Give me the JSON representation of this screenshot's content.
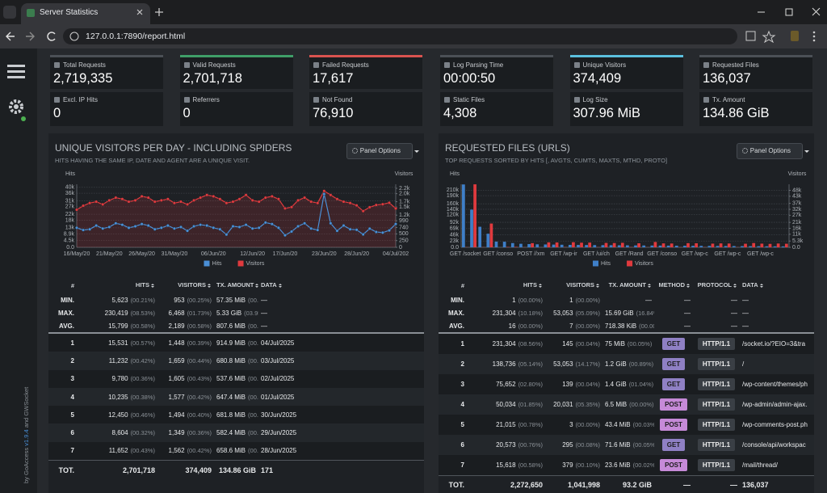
{
  "browser": {
    "tab_title": "Server Statistics",
    "url": "127.0.0.1:7890/report.html"
  },
  "sidebar": {
    "credit": [
      "by GoAccess",
      "v1.9.4",
      "and GWSocket"
    ]
  },
  "overview": {
    "groups": [
      [
        {
          "label": "Total Requests",
          "value": "2,719,335",
          "accent": "#4b5056"
        },
        {
          "label": "Valid Requests",
          "value": "2,701,718",
          "accent": "#3f9e68"
        },
        {
          "label": "Failed Requests",
          "value": "17,617",
          "accent": "#d9534f"
        },
        {
          "label": "Excl. IP Hits",
          "value": "0"
        },
        {
          "label": "Referrers",
          "value": "0"
        },
        {
          "label": "Not Found",
          "value": "76,910"
        }
      ],
      [
        {
          "label": "Log Parsing Time",
          "value": "00:00:50",
          "accent": "#4b5056"
        },
        {
          "label": "Unique Visitors",
          "value": "374,409",
          "accent": "#5bc0de"
        },
        {
          "label": "Requested Files",
          "value": "136,037",
          "accent": "#4b5056"
        },
        {
          "label": "Static Files",
          "value": "4,308"
        },
        {
          "label": "Log Size",
          "value": "307.96 MiB"
        },
        {
          "label": "Tx. Amount",
          "value": "134.86 GiB"
        }
      ]
    ]
  },
  "panels": [
    {
      "title": "UNIQUE VISITORS PER DAY - INCLUDING SPIDERS",
      "subtitle": "HITS HAVING THE SAME IP, DATE AND AGENT ARE A UNIQUE VISIT.",
      "options": "Panel Options",
      "chart_data": {
        "type": "line",
        "y_label": "Hits",
        "y2_label": "Visitors",
        "categories": [
          "16/May/20",
          null,
          null,
          null,
          null,
          "21/May/20",
          null,
          null,
          null,
          null,
          "26/May/20",
          null,
          null,
          null,
          null,
          "31/May/20",
          null,
          null,
          null,
          null,
          null,
          "06/Jun/20",
          null,
          null,
          null,
          null,
          null,
          "12/Jun/20",
          null,
          null,
          null,
          null,
          "17/Jun/20",
          null,
          null,
          null,
          null,
          null,
          "23/Jun/20",
          null,
          null,
          null,
          null,
          "28/Jun/20",
          null,
          null,
          null,
          null,
          null,
          "04/Jul/202"
        ],
        "series": [
          {
            "name": "Hits",
            "color": "#4a8fd6",
            "values": [
              13000,
              11500,
              12000,
              14500,
              12500,
              13500,
              16000,
              15000,
              13000,
              14000,
              15500,
              14500,
              12000,
              13000,
              14500,
              12500,
              13500,
              11000,
              14000,
              15000,
              14500,
              13000,
              12000,
              8500,
              14000,
              13500,
              15000,
              12500,
              13000,
              16500,
              15500,
              13000,
              8000,
              10500,
              14000,
              16000,
              12500,
              11500,
              35500,
              16000,
              11000,
              14500,
              12000,
              11652,
              8604,
              12450,
              10235,
              9780,
              11232,
              15531
            ]
          },
          {
            "name": "Visitors",
            "color": "#e03a3e",
            "axis": "y2",
            "values": [
              1400,
              1550,
              1650,
              1700,
              1600,
              1750,
              1850,
              1800,
              1700,
              1750,
              1900,
              1850,
              1700,
              1750,
              1800,
              1650,
              1700,
              1600,
              1750,
              1850,
              1950,
              1900,
              1800,
              1650,
              1700,
              1800,
              1950,
              1750,
              1700,
              1850,
              1900,
              1800,
              1450,
              1500,
              1750,
              1850,
              1700,
              1650,
              2100,
              1950,
              1800,
              1700,
              1650,
              1562,
              1349,
              1494,
              1577,
              1605,
              1659,
              1448
            ]
          }
        ],
        "ylim": [
          0,
          42000
        ],
        "yticks": [
          {
            "value": 0,
            "label": "0.0"
          },
          {
            "value": 4500,
            "label": "4.5k"
          },
          {
            "value": 8900,
            "label": "8.9k"
          },
          {
            "value": 13000,
            "label": "13k"
          },
          {
            "value": 18000,
            "label": "18k"
          },
          {
            "value": 22000,
            "label": "22k"
          },
          {
            "value": 27000,
            "label": "27k"
          },
          {
            "value": 31000,
            "label": "31k"
          },
          {
            "value": 36000,
            "label": "36k"
          },
          {
            "value": 40000,
            "label": "40k"
          }
        ],
        "y2lim": [
          0,
          2350
        ],
        "y2ticks": [
          0,
          250,
          500,
          740,
          990,
          {
            "value": 1200,
            "label": "1.2k"
          },
          {
            "value": 1500,
            "label": "1.5k"
          },
          {
            "value": 1700,
            "label": "1.7k"
          },
          {
            "value": 2000,
            "label": "2.0k"
          },
          {
            "value": 2200,
            "label": "2.2k"
          }
        ],
        "grid": true
      },
      "table": {
        "columns": [
          "#",
          "HITS",
          "VISITORS",
          "TX. AMOUNT",
          "DATA"
        ],
        "summary": [
          [
            "MIN.",
            [
              "5,623",
              "(00.21%)"
            ],
            [
              "953",
              "(00.25%)"
            ],
            [
              "57.35 MiB",
              "(00.04%)"
            ],
            "—"
          ],
          [
            "MAX.",
            [
              "230,419",
              "(08.53%)"
            ],
            [
              "6,468",
              "(01.73%)"
            ],
            [
              "5.33 GiB",
              "(03.95%)"
            ],
            "—"
          ],
          [
            "AVG.",
            [
              "15,799",
              "(00.58%)"
            ],
            [
              "2,189",
              "(00.58%)"
            ],
            [
              "807.6 MiB",
              "(00.58%)"
            ],
            "—"
          ]
        ],
        "rows": [
          [
            "1",
            [
              "15,531",
              "(00.57%)"
            ],
            [
              "1,448",
              "(00.39%)"
            ],
            [
              "914.9 MiB",
              "(00.66%)"
            ],
            "04/Jul/2025"
          ],
          [
            "2",
            [
              "11,232",
              "(00.42%)"
            ],
            [
              "1,659",
              "(00.44%)"
            ],
            [
              "680.8 MiB",
              "(00.49%)"
            ],
            "03/Jul/2025"
          ],
          [
            "3",
            [
              "9,780",
              "(00.36%)"
            ],
            [
              "1,605",
              "(00.43%)"
            ],
            [
              "537.6 MiB",
              "(00.39%)"
            ],
            "02/Jul/2025"
          ],
          [
            "4",
            [
              "10,235",
              "(00.38%)"
            ],
            [
              "1,577",
              "(00.42%)"
            ],
            [
              "647.4 MiB",
              "(00.47%)"
            ],
            "01/Jul/2025"
          ],
          [
            "5",
            [
              "12,450",
              "(00.46%)"
            ],
            [
              "1,494",
              "(00.40%)"
            ],
            [
              "681.8 MiB",
              "(00.49%)"
            ],
            "30/Jun/2025"
          ],
          [
            "6",
            [
              "8,604",
              "(00.32%)"
            ],
            [
              "1,349",
              "(00.36%)"
            ],
            [
              "582.4 MiB",
              "(00.42%)"
            ],
            "29/Jun/2025"
          ],
          [
            "7",
            [
              "11,652",
              "(00.43%)"
            ],
            [
              "1,562",
              "(00.42%)"
            ],
            [
              "658.6 MiB",
              "(00.48%)"
            ],
            "28/Jun/2025"
          ]
        ],
        "total": [
          "TOT.",
          "2,701,718",
          "374,409",
          "134.86 GiB",
          "171"
        ]
      }
    },
    {
      "title": "REQUESTED FILES (URLS)",
      "subtitle": "TOP REQUESTS SORTED BY HITS [, AVGTS, CUMTS, MAXTS, MTHD, PROTO]",
      "options": "Panel Options",
      "chart_data": {
        "type": "bar",
        "y_label": "Hits",
        "y2_label": "Visitors",
        "categories": [
          "GET /socket",
          null,
          null,
          null,
          "GET /conso",
          null,
          null,
          null,
          "POST //xm",
          null,
          null,
          null,
          "GET /wp-ir",
          null,
          null,
          null,
          "GET /ui/ch",
          null,
          null,
          null,
          "GET /Rand",
          null,
          null,
          null,
          "GET /conso",
          null,
          null,
          null,
          "GET /wp-c",
          null,
          null,
          null,
          "GET /wp-c",
          null,
          null,
          null,
          "GET /wp-c",
          null,
          null,
          null
        ],
        "series": [
          {
            "name": "Hits",
            "color": "#3f7fc8",
            "values": [
              231304,
              138736,
              75652,
              50034,
              21015,
              20573,
              15618,
              13000,
              12000,
              11000,
              10500,
              10000,
              9500,
              9000,
              8800,
              8500,
              8200,
              8000,
              7800,
              7500,
              7300,
              7000,
              6800,
              6600,
              6400,
              6200,
              6000,
              5800,
              5600,
              5400,
              5200,
              5000,
              4800,
              4600,
              4400,
              4200,
              4000,
              3800,
              3600,
              3400
            ]
          },
          {
            "name": "Visitors",
            "color": "#e03a3e",
            "axis": "y2",
            "values": [
              145,
              53053,
              139,
              20031,
              3,
              295,
              379,
              120,
              3500,
              90,
              4200,
              4100,
              200,
              4300,
              3900,
              4000,
              150,
              3700,
              3600,
              3800,
              250,
              3400,
              110,
              4500,
              3300,
              3200,
              180,
              3500,
              3400,
              160,
              3100,
              3300,
              3200,
              140,
              3000,
              3600,
              3100,
              2900,
              3200,
              3000
            ]
          }
        ],
        "ylim": [
          0,
          232000
        ],
        "yticks": [
          {
            "value": 0,
            "label": "0.0"
          },
          {
            "value": 23000,
            "label": "23k"
          },
          {
            "value": 46000,
            "label": "46k"
          },
          {
            "value": 69000,
            "label": "69k"
          },
          {
            "value": 92000,
            "label": "92k"
          },
          {
            "value": 120000,
            "label": "120k"
          },
          {
            "value": 140000,
            "label": "140k"
          },
          {
            "value": 160000,
            "label": "160k"
          },
          {
            "value": 190000,
            "label": "190k"
          },
          {
            "value": 210000,
            "label": "210k"
          }
        ],
        "y2lim": [
          0,
          53100
        ],
        "y2ticks": [
          {
            "value": 0,
            "label": "0.0"
          },
          {
            "value": 5300,
            "label": "5.3k"
          },
          {
            "value": 11000,
            "label": "11k"
          },
          {
            "value": 16000,
            "label": "16k"
          },
          {
            "value": 21000,
            "label": "21k"
          },
          {
            "value": 27000,
            "label": "27k"
          },
          {
            "value": 32000,
            "label": "32k"
          },
          {
            "value": 37000,
            "label": "37k"
          },
          {
            "value": 43000,
            "label": "43k"
          },
          {
            "value": 48000,
            "label": "48k"
          }
        ],
        "grid": true
      },
      "table": {
        "columns": [
          "#",
          "HITS",
          "VISITORS",
          "TX. AMOUNT",
          "METHOD",
          "PROTOCOL",
          "DATA"
        ],
        "badge_colors": {
          "GET": "#8f80c4",
          "POST": "#c68ad8"
        },
        "summary": [
          [
            "MIN.",
            [
              "1",
              "(00.00%)"
            ],
            [
              "1",
              "(00.00%)"
            ],
            "—",
            "—",
            "—",
            "—"
          ],
          [
            "MAX.",
            [
              "231,304",
              "(10.18%)"
            ],
            [
              "53,053",
              "(05.09%)"
            ],
            [
              "15.69 GiB",
              "(16.84%)"
            ],
            "—",
            "—",
            "—"
          ],
          [
            "AVG.",
            [
              "16",
              "(00.00%)"
            ],
            [
              "7",
              "(00.00%)"
            ],
            [
              "718.38 KiB",
              "(00.00%)"
            ],
            "—",
            "—",
            "—"
          ]
        ],
        "rows": [
          [
            "1",
            [
              "231,304",
              "(08.56%)"
            ],
            [
              "145",
              "(00.04%)"
            ],
            [
              "75 MiB",
              "(00.05%)"
            ],
            "GET",
            "HTTP/1.1",
            "/socket.io/?EIO=3&tra"
          ],
          [
            "2",
            [
              "138,736",
              "(05.14%)"
            ],
            [
              "53,053",
              "(14.17%)"
            ],
            [
              "1.2 GiB",
              "(00.89%)"
            ],
            "GET",
            "HTTP/1.1",
            "/"
          ],
          [
            "3",
            [
              "75,652",
              "(02.80%)"
            ],
            [
              "139",
              "(00.04%)"
            ],
            [
              "1.4 GiB",
              "(01.04%)"
            ],
            "GET",
            "HTTP/1.1",
            "/wp-content/themes/ph"
          ],
          [
            "4",
            [
              "50,034",
              "(01.85%)"
            ],
            [
              "20,031",
              "(05.35%)"
            ],
            [
              "6.5 MiB",
              "(00.00%)"
            ],
            "POST",
            "HTTP/1.1",
            "/wp-admin/admin-ajax."
          ],
          [
            "5",
            [
              "21,015",
              "(00.78%)"
            ],
            [
              "3",
              "(00.00%)"
            ],
            [
              "43.4 MiB",
              "(00.03%)"
            ],
            "POST",
            "HTTP/1.1",
            "/wp-comments-post.ph"
          ],
          [
            "6",
            [
              "20,573",
              "(00.76%)"
            ],
            [
              "295",
              "(00.08%)"
            ],
            [
              "71.6 MiB",
              "(00.05%)"
            ],
            "GET",
            "HTTP/1.1",
            "/console/api/workspac"
          ],
          [
            "7",
            [
              "15,618",
              "(00.58%)"
            ],
            [
              "379",
              "(00.10%)"
            ],
            [
              "23.6 MiB",
              "(00.02%)"
            ],
            "POST",
            "HTTP/1.1",
            "/mail/thread/"
          ]
        ],
        "total": [
          "TOT.",
          "2,272,650",
          "1,041,998",
          "93.2 GiB",
          "—",
          "—",
          "136,037"
        ]
      }
    }
  ]
}
